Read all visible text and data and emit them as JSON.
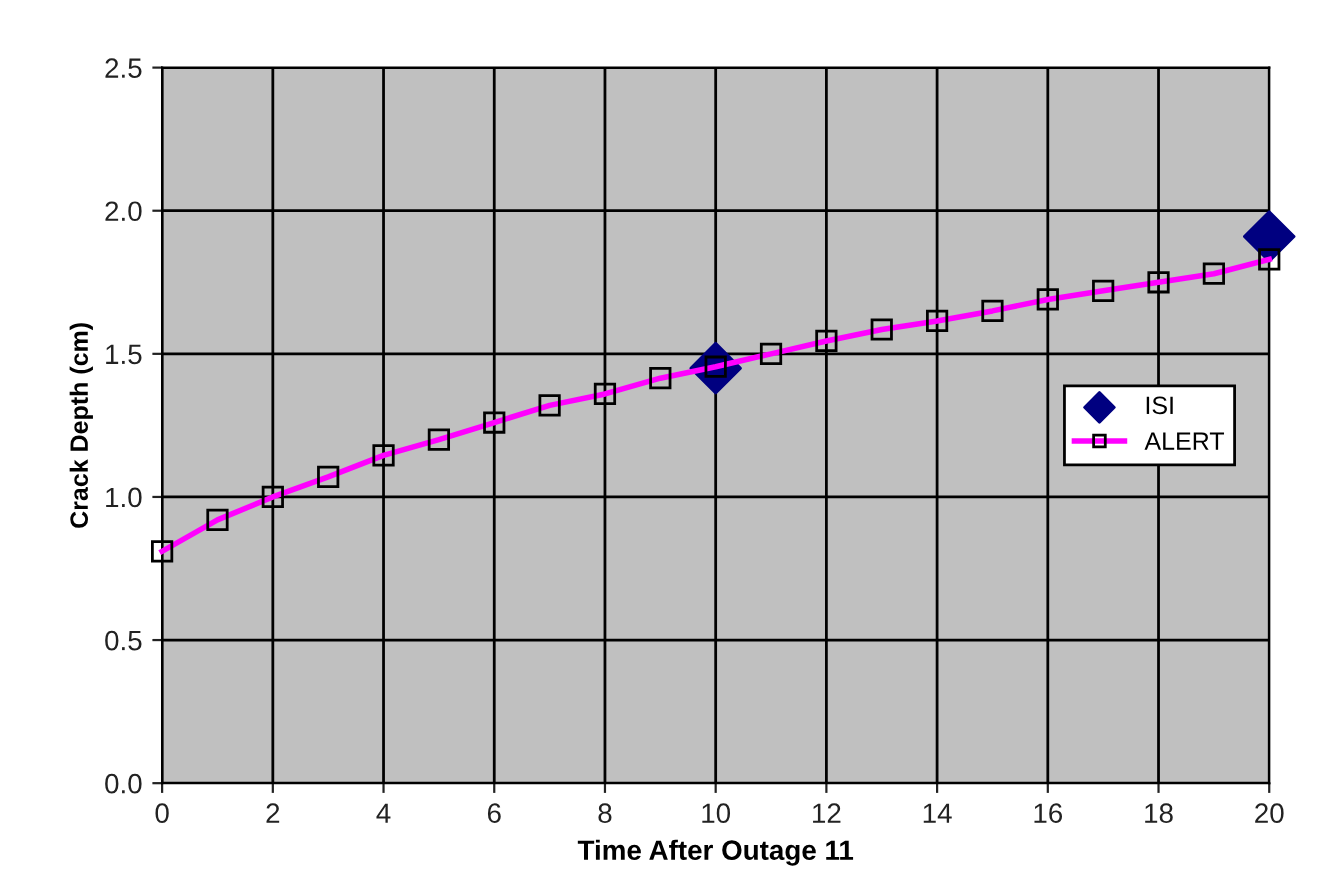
{
  "chart_data": {
    "type": "line",
    "xlabel": "Time After Outage 11",
    "ylabel": "Crack Depth (cm)",
    "xlim": [
      0,
      20
    ],
    "xticks": [
      0,
      2,
      4,
      6,
      8,
      10,
      12,
      14,
      16,
      18,
      20
    ],
    "ylim": [
      0,
      2.5
    ],
    "yticks": [
      {
        "value": 0,
        "label": "0.0"
      },
      {
        "value": 0.5,
        "label": "0.5"
      },
      {
        "value": 1,
        "label": "1.0"
      },
      {
        "value": 1.5,
        "label": "1.5"
      },
      {
        "value": 2,
        "label": "2.0"
      },
      {
        "value": 2.5,
        "label": "2.5"
      }
    ],
    "grid": true,
    "legend": "right",
    "series": [
      {
        "name": "ISI",
        "type": "scatter",
        "marker": "diamond",
        "color": "#000080",
        "x": [
          10,
          20
        ],
        "values": [
          1.45,
          1.91
        ]
      },
      {
        "name": "ALERT",
        "marker": "square",
        "line_style": "solid",
        "color": "#ff00ff",
        "x": [
          0,
          1,
          2,
          3,
          4,
          5,
          6,
          7,
          8,
          9,
          10,
          11,
          12,
          13,
          14,
          15,
          16,
          17,
          18,
          19,
          20
        ],
        "values": [
          0.81,
          0.92,
          1.0,
          1.07,
          1.145,
          1.2,
          1.26,
          1.32,
          1.36,
          1.415,
          1.455,
          1.5,
          1.545,
          1.585,
          1.615,
          1.65,
          1.69,
          1.72,
          1.75,
          1.78,
          1.83
        ]
      }
    ]
  }
}
